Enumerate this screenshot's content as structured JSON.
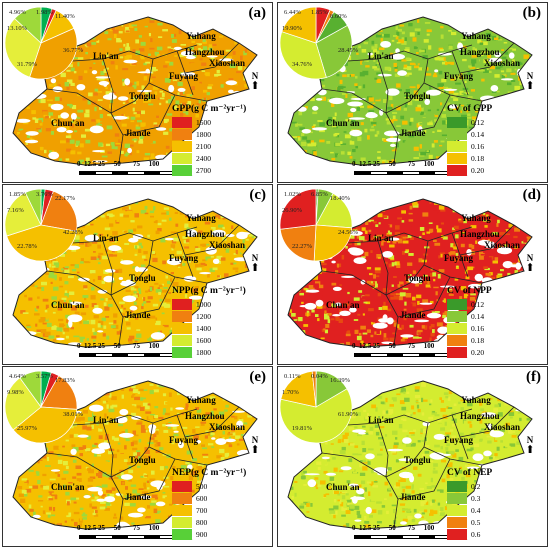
{
  "panels": [
    {
      "label": "(a)",
      "pie": [
        {
          "value": 4.96,
          "color": "#00b050"
        },
        {
          "value": 1.98,
          "color": "#e02020"
        },
        {
          "value": 11.4,
          "color": "#f5c000"
        },
        {
          "value": 36.77,
          "color": "#f0a000"
        },
        {
          "value": 31.79,
          "color": "#e5ee3a"
        },
        {
          "value": 13.1,
          "color": "#9ed93a"
        }
      ],
      "pie_labels": [
        "4.96%",
        "1.98%",
        "11.40%",
        "36.77%",
        "31.79%",
        "13.10%"
      ],
      "legend": {
        "title": "GPP(g C m⁻²yr⁻¹)",
        "items": [
          {
            "label": "1500",
            "color": "#e02020"
          },
          {
            "label": "1800",
            "color": "#f08010"
          },
          {
            "label": "2100",
            "color": "#f5c000"
          },
          {
            "label": "2400",
            "color": "#d4ec30"
          },
          {
            "label": "2700",
            "color": "#58d038"
          }
        ]
      },
      "map_palette": [
        "#f0a000",
        "#e5ee3a",
        "#9ed93a",
        "#f5c000",
        "#f08010"
      ]
    },
    {
      "label": "(b)",
      "pie": [
        {
          "value": 6.44,
          "color": "#e02020"
        },
        {
          "value": 1.85,
          "color": "#f08010"
        },
        {
          "value": 8.6,
          "color": "#58b030"
        },
        {
          "value": 28.45,
          "color": "#88c838"
        },
        {
          "value": 34.76,
          "color": "#d4ec30"
        },
        {
          "value": 19.9,
          "color": "#f5c000"
        }
      ],
      "pie_labels": [
        "6.44%",
        "1.85%",
        "8.60%",
        "28.45%",
        "34.76%",
        "19.90%"
      ],
      "legend": {
        "title": "CV of GPP",
        "items": [
          {
            "label": "0.12",
            "color": "#3a9a2a"
          },
          {
            "label": "0.14",
            "color": "#88c838"
          },
          {
            "label": "0.16",
            "color": "#d4ec30"
          },
          {
            "label": "0.18",
            "color": "#f5c000"
          },
          {
            "label": "0.20",
            "color": "#e02020"
          }
        ]
      },
      "map_palette": [
        "#88c838",
        "#d4ec30",
        "#58b030",
        "#b8e034",
        "#f5c000"
      ]
    },
    {
      "label": "(c)",
      "pie": [
        {
          "value": 1.85,
          "color": "#00b050"
        },
        {
          "value": 3.76,
          "color": "#e02020"
        },
        {
          "value": 22.17,
          "color": "#f08010"
        },
        {
          "value": 42.28,
          "color": "#f5c000"
        },
        {
          "value": 22.78,
          "color": "#e5ee3a"
        },
        {
          "value": 7.16,
          "color": "#9ed93a"
        }
      ],
      "pie_labels": [
        "1.85%",
        "3.76%",
        "22.17%",
        "42.28%",
        "22.78%",
        "7.16%"
      ],
      "legend": {
        "title": "NPP(g C m⁻²yr⁻¹)",
        "items": [
          {
            "label": "1000",
            "color": "#e02020"
          },
          {
            "label": "1200",
            "color": "#f08010"
          },
          {
            "label": "1400",
            "color": "#f5c000"
          },
          {
            "label": "1600",
            "color": "#d4ec30"
          },
          {
            "label": "1800",
            "color": "#58d038"
          }
        ]
      },
      "map_palette": [
        "#f5c000",
        "#f08010",
        "#e5ee3a",
        "#f0a000",
        "#9ed93a"
      ]
    },
    {
      "label": "(d)",
      "pie": [
        {
          "value": 1.02,
          "color": "#58b030"
        },
        {
          "value": 6.85,
          "color": "#88c838"
        },
        {
          "value": 18.4,
          "color": "#d4ec30"
        },
        {
          "value": 24.56,
          "color": "#f5c000"
        },
        {
          "value": 22.27,
          "color": "#f08010"
        },
        {
          "value": 26.9,
          "color": "#e02020"
        }
      ],
      "pie_labels": [
        "1.02%",
        "6.85%",
        "18.40%",
        "24.56%",
        "22.27%",
        "26.90%"
      ],
      "legend": {
        "title": "CV of NPP",
        "items": [
          {
            "label": "0.12",
            "color": "#3a9a2a"
          },
          {
            "label": "0.14",
            "color": "#88c838"
          },
          {
            "label": "0.16",
            "color": "#d4ec30"
          },
          {
            "label": "0.18",
            "color": "#f08010"
          },
          {
            "label": "0.20",
            "color": "#e02020"
          }
        ]
      },
      "map_palette": [
        "#e02020",
        "#f08010",
        "#f5c000",
        "#d4ec30",
        "#e84a10"
      ]
    },
    {
      "label": "(e)",
      "pie": [
        {
          "value": 4.64,
          "color": "#00b050"
        },
        {
          "value": 3.57,
          "color": "#e02020"
        },
        {
          "value": 17.83,
          "color": "#f08010"
        },
        {
          "value": 38.01,
          "color": "#f5c000"
        },
        {
          "value": 25.97,
          "color": "#e5ee3a"
        },
        {
          "value": 9.98,
          "color": "#9ed93a"
        }
      ],
      "pie_labels": [
        "4.64%",
        "3.57%",
        "17.83%",
        "38.01%",
        "25.97%",
        "9.98%"
      ],
      "legend": {
        "title": "NEP(g C m⁻²yr⁻¹)",
        "items": [
          {
            "label": "500",
            "color": "#e02020"
          },
          {
            "label": "600",
            "color": "#f08010"
          },
          {
            "label": "700",
            "color": "#f5c000"
          },
          {
            "label": "800",
            "color": "#d4ec30"
          },
          {
            "label": "900",
            "color": "#58d038"
          }
        ]
      },
      "map_palette": [
        "#f5c000",
        "#f08010",
        "#e5ee3a",
        "#9ed93a",
        "#f0a000"
      ]
    },
    {
      "label": "(f)",
      "pie": [
        {
          "value": 0.11,
          "color": "#e02020"
        },
        {
          "value": 0.04,
          "color": "#3a9a2a"
        },
        {
          "value": 16.39,
          "color": "#88c838"
        },
        {
          "value": 61.9,
          "color": "#d4ec30"
        },
        {
          "value": 19.81,
          "color": "#f5c000"
        },
        {
          "value": 1.7,
          "color": "#f08010"
        }
      ],
      "pie_labels": [
        "0.11%",
        "0.04%",
        "16.39%",
        "61.90%",
        "19.81%",
        "1.70%"
      ],
      "legend": {
        "title": "CV of NEP",
        "items": [
          {
            "label": "0.2",
            "color": "#3a9a2a"
          },
          {
            "label": "0.3",
            "color": "#88c838"
          },
          {
            "label": "0.4",
            "color": "#d4ec30"
          },
          {
            "label": "0.5",
            "color": "#f08010"
          },
          {
            "label": "0.6",
            "color": "#e02020"
          }
        ]
      },
      "map_palette": [
        "#d4ec30",
        "#b8e034",
        "#88c838",
        "#e5ee3a",
        "#f5c000"
      ]
    }
  ],
  "districts": [
    "Lin'an",
    "Yuhang",
    "Hangzhou",
    "Xiaoshan",
    "Fuyang",
    "Tonglu",
    "Chun'an",
    "Jiande"
  ],
  "scalebar": {
    "ticks": "0  12.5 25     50       75     100",
    "unit": "Km"
  },
  "north": "N"
}
